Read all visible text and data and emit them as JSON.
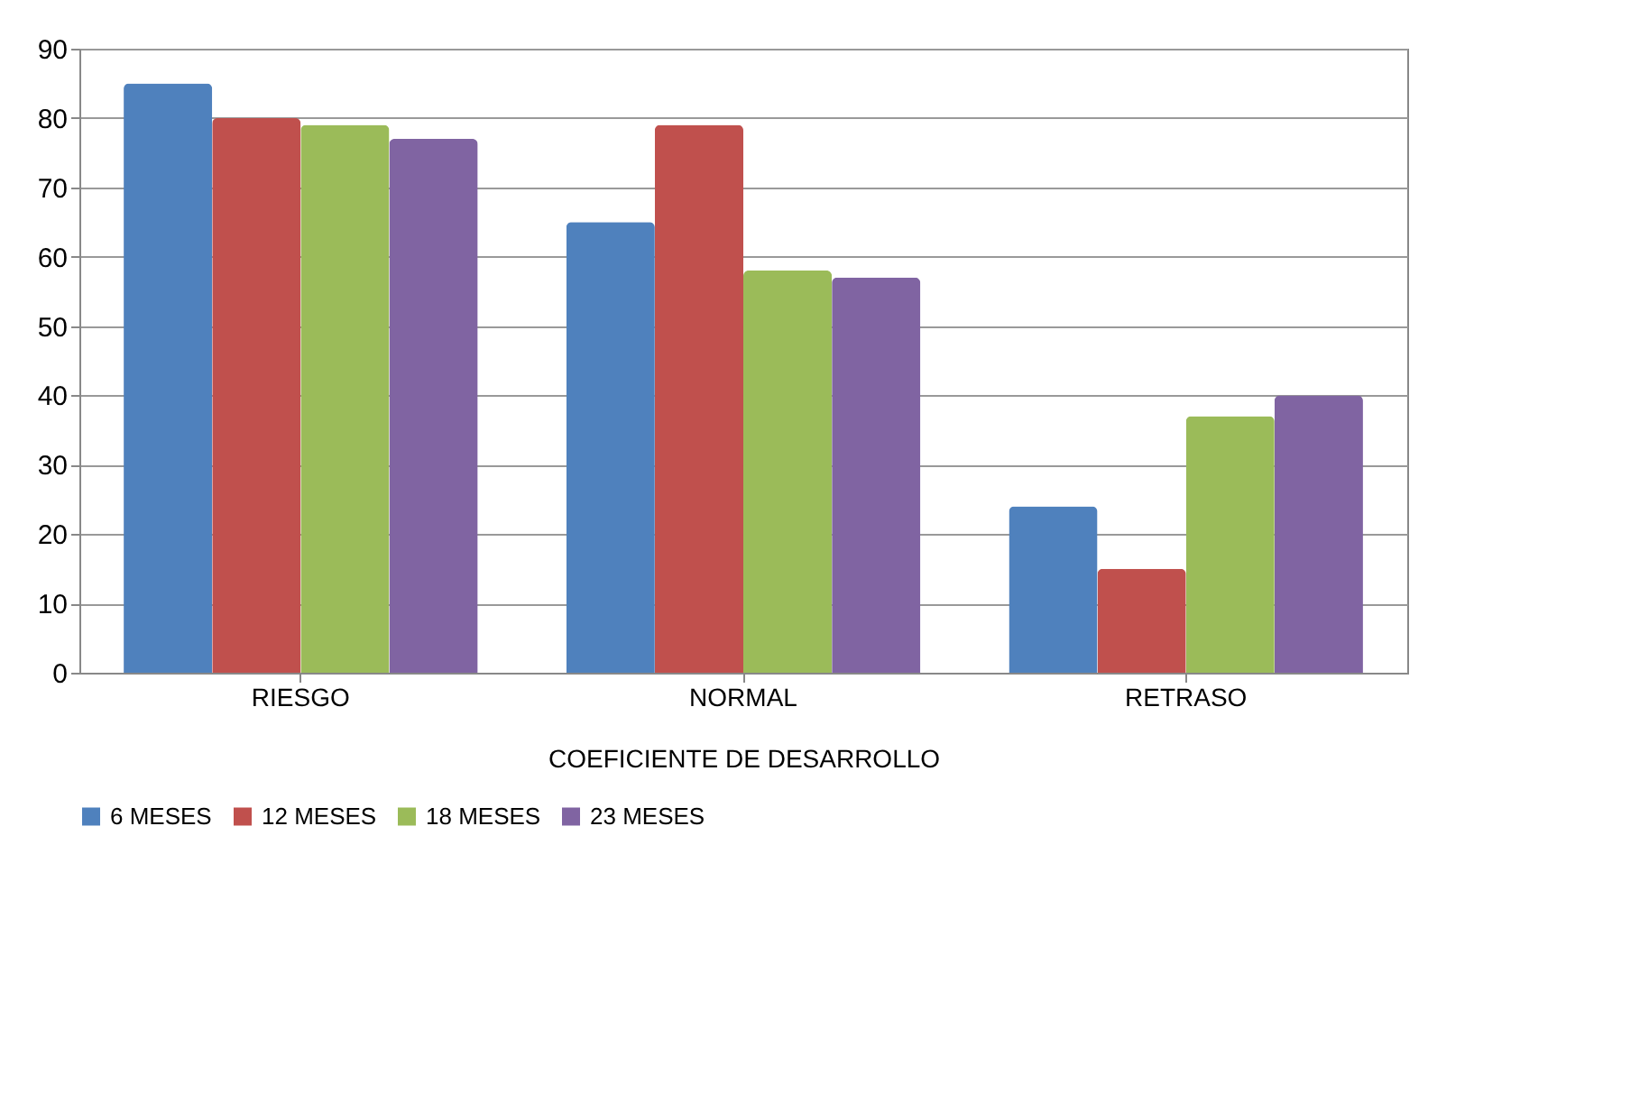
{
  "chart_data": {
    "type": "bar",
    "xlabel": "COEFICIENTE DE DESARROLLO",
    "categories": [
      "RIESGO",
      "NORMAL",
      "RETRASO"
    ],
    "series": [
      {
        "name": "6 MESES",
        "color": "#4f81bd",
        "values": [
          85,
          65,
          24
        ]
      },
      {
        "name": "12 MESES",
        "color": "#c0504d",
        "values": [
          80,
          79,
          15
        ]
      },
      {
        "name": "18 MESES",
        "color": "#9bbb59",
        "values": [
          79,
          58,
          37
        ]
      },
      {
        "name": "23 MESES",
        "color": "#8064a2",
        "values": [
          77,
          57,
          40
        ]
      }
    ],
    "ylim": [
      0,
      90
    ],
    "yticks": [
      0,
      10,
      20,
      30,
      40,
      50,
      60,
      70,
      80,
      90
    ],
    "grid": "y",
    "legend": "bottom"
  }
}
